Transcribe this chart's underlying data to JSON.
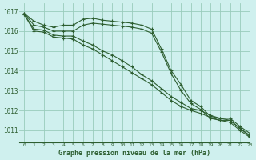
{
  "title": "Graphe pression niveau de la mer (hPa)",
  "bg_color": "#cff0ee",
  "grid_color": "#99ccbb",
  "line_color": "#2d5e30",
  "xlim": [
    -0.5,
    23
  ],
  "ylim": [
    1010.4,
    1017.4
  ],
  "yticks": [
    1011,
    1012,
    1013,
    1014,
    1015,
    1016,
    1017
  ],
  "xticks": [
    0,
    1,
    2,
    3,
    4,
    5,
    6,
    7,
    8,
    9,
    10,
    11,
    12,
    13,
    14,
    15,
    16,
    17,
    18,
    19,
    20,
    21,
    22,
    23
  ],
  "series": [
    [
      1016.9,
      1016.5,
      1016.3,
      1016.2,
      1016.3,
      1016.3,
      1016.6,
      1016.65,
      1016.55,
      1016.5,
      1016.45,
      1016.4,
      1016.3,
      1016.1,
      1015.1,
      1014.0,
      1013.3,
      1012.5,
      1012.2,
      1011.7,
      1011.6,
      1011.6,
      1011.2,
      1010.85
    ],
    [
      1016.9,
      1016.3,
      1016.2,
      1016.0,
      1016.0,
      1016.0,
      1016.3,
      1016.4,
      1016.35,
      1016.3,
      1016.25,
      1016.2,
      1016.1,
      1015.9,
      1014.95,
      1013.85,
      1013.0,
      1012.35,
      1012.05,
      1011.6,
      1011.5,
      1011.5,
      1011.1,
      1010.75
    ],
    [
      1016.85,
      1016.1,
      1016.05,
      1015.8,
      1015.75,
      1015.75,
      1015.5,
      1015.3,
      1015.0,
      1014.8,
      1014.5,
      1014.2,
      1013.8,
      1013.5,
      1013.1,
      1012.7,
      1012.4,
      1012.1,
      1012.0,
      1011.75,
      1011.6,
      1011.5,
      1011.1,
      1010.7
    ],
    [
      1016.85,
      1016.0,
      1015.95,
      1015.7,
      1015.65,
      1015.6,
      1015.3,
      1015.1,
      1014.8,
      1014.5,
      1014.2,
      1013.9,
      1013.6,
      1013.3,
      1012.9,
      1012.5,
      1012.2,
      1012.0,
      1011.85,
      1011.65,
      1011.5,
      1011.4,
      1011.0,
      1010.65
    ]
  ],
  "ylabel_fontsize": 5.5,
  "xlabel_fontsize": 6.0,
  "tick_fontsize": 4.5,
  "linewidth": 0.8,
  "markersize": 2.5,
  "markeredgewidth": 0.8
}
